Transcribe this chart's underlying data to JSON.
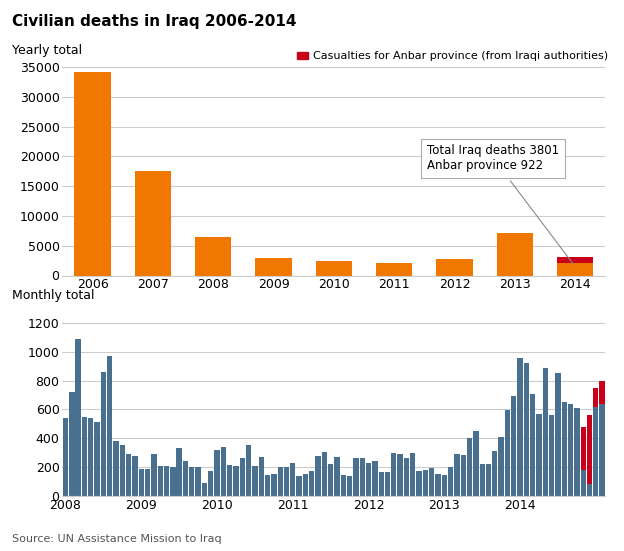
{
  "title": "Civilian deaths in Iraq 2006-2014",
  "yearly_labels": [
    "2006",
    "2007",
    "2008",
    "2009",
    "2010",
    "2011",
    "2012",
    "2013",
    "2014"
  ],
  "yearly_total": [
    34200,
    17500,
    6400,
    2900,
    2500,
    2100,
    2800,
    7200,
    3100
  ],
  "yearly_anbar": [
    0,
    0,
    0,
    0,
    0,
    0,
    0,
    0,
    922
  ],
  "yearly_ylim": [
    0,
    37000
  ],
  "yearly_yticks": [
    0,
    5000,
    10000,
    15000,
    20000,
    25000,
    30000,
    35000
  ],
  "bar_orange": "#F07800",
  "bar_red": "#C8001A",
  "bar_blue": "#4A7090",
  "annotation_text": "Total Iraq deaths 3801\nAnbar province 922",
  "legend_label": "Casualties for Anbar province (from Iraqi authorities)",
  "yearly_subtitle": "Yearly total",
  "monthly_subtitle": "Monthly total",
  "monthly_values": [
    540,
    720,
    1090,
    550,
    540,
    510,
    860,
    970,
    380,
    355,
    290,
    280,
    190,
    185,
    290,
    205,
    210,
    200,
    330,
    245,
    200,
    200,
    90,
    175,
    320,
    340,
    215,
    205,
    265,
    350,
    205,
    270,
    145,
    155,
    200,
    200,
    225,
    140,
    155,
    170,
    280,
    305,
    220,
    270,
    145,
    140,
    265,
    260,
    225,
    240,
    165,
    165,
    300,
    290,
    265,
    300,
    175,
    180,
    195,
    155,
    145,
    200,
    290,
    285,
    400,
    450,
    220,
    220,
    315,
    410,
    595,
    690,
    960,
    920,
    710,
    570,
    885,
    560,
    850,
    650,
    635,
    610,
    480,
    563,
    750,
    795
  ],
  "monthly_anbar": [
    0,
    0,
    0,
    0,
    0,
    0,
    0,
    0,
    0,
    0,
    0,
    0,
    0,
    0,
    0,
    0,
    0,
    0,
    0,
    0,
    0,
    0,
    0,
    0,
    0,
    0,
    0,
    0,
    0,
    0,
    0,
    0,
    0,
    0,
    0,
    0,
    0,
    0,
    0,
    0,
    0,
    0,
    0,
    0,
    0,
    0,
    0,
    0,
    0,
    0,
    0,
    0,
    0,
    0,
    0,
    0,
    0,
    0,
    0,
    0,
    0,
    0,
    0,
    0,
    0,
    0,
    0,
    0,
    0,
    0,
    0,
    0,
    0,
    0,
    0,
    0,
    0,
    0,
    0,
    0,
    0,
    0,
    300,
    480,
    130,
    160
  ],
  "monthly_ylim": [
    0,
    1300
  ],
  "monthly_yticks": [
    0,
    200,
    400,
    600,
    800,
    1000,
    1200
  ],
  "source_text": "Source: UN Assistance Mission to Iraq",
  "background_color": "#FFFFFF"
}
